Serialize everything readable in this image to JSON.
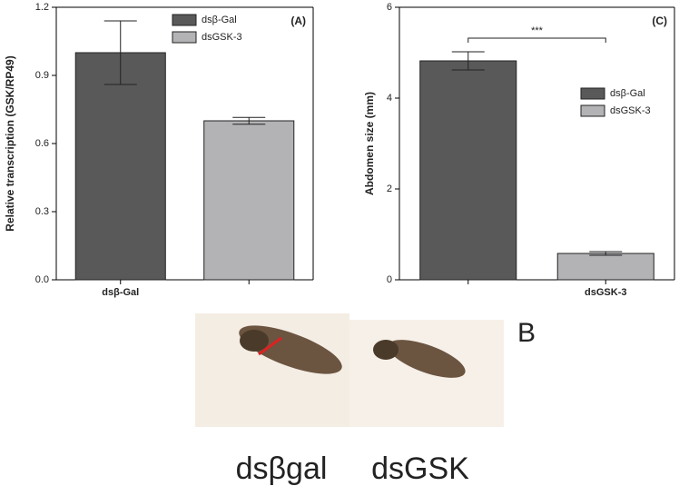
{
  "chart_data": [
    {
      "type": "bar",
      "panel_label": "(A)",
      "y_label": "Relative transcription (GSK/RP49)",
      "categories": [
        "dsβ-Gal",
        null
      ],
      "series": [
        {
          "name": "dsβ-Gal",
          "color": "#595959",
          "values": [
            1.0,
            null
          ],
          "errors": [
            0.14,
            null
          ]
        },
        {
          "name": "dsGSK-3",
          "color": "#b3b3b6",
          "values": [
            null,
            0.7
          ],
          "errors": [
            null,
            0.015
          ]
        }
      ],
      "ylim": [
        0,
        1.2
      ],
      "yticks": [
        {
          "value": 0,
          "label": "0.0"
        },
        0.3,
        0.6,
        0.9,
        1.2
      ],
      "legend": "top-right"
    },
    {
      "type": "bar",
      "panel_label": "(C)",
      "y_label": "Abdomen size (mm)",
      "categories": [
        null,
        "dsGSK-3"
      ],
      "series": [
        {
          "name": "dsβ-Gal",
          "color": "#595959",
          "values": [
            4.82,
            null
          ],
          "errors": [
            0.2,
            null
          ]
        },
        {
          "name": "dsGSK-3",
          "color": "#b3b3b6",
          "values": [
            null,
            0.58
          ],
          "errors": [
            null,
            0.04
          ]
        }
      ],
      "ylim": [
        0,
        6
      ],
      "yticks": [
        0,
        2,
        4,
        6
      ],
      "annotation": "***",
      "legend": "right"
    }
  ],
  "panel_b": {
    "label": "B",
    "captions": [
      "dsβgal",
      "dsGSK"
    ]
  }
}
